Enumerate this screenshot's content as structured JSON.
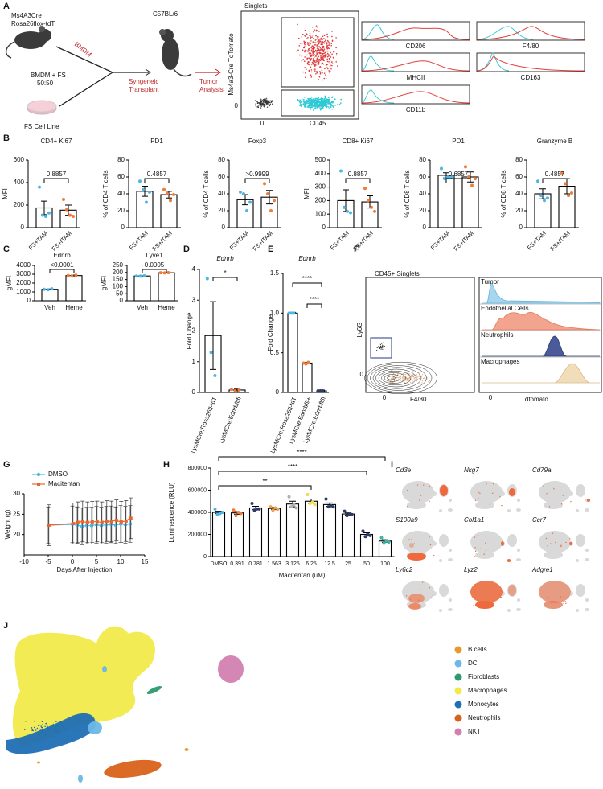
{
  "panel_labels": [
    "A",
    "B",
    "C",
    "D",
    "E",
    "F",
    "G",
    "H",
    "I",
    "J"
  ],
  "schematic": {
    "donor_line_1": "Ms4A3Cre",
    "donor_line_2": "Rosa26flox-tdT",
    "bmdm_arrow": "BMDM",
    "coculture": "BMDM + FS",
    "ratio": "50:50",
    "cell_line": "FS Cell Line",
    "recipient": "C57BL/6",
    "transplant": [
      "Syngeneic",
      "Transplant"
    ],
    "analysis": [
      "Tumor",
      "Analysis"
    ]
  },
  "flow_a": {
    "title": "Singlets",
    "y_label": "Ms4a3-Cre TdTomato",
    "x_label": "CD45",
    "x_zero": "0",
    "y_zero": "0"
  },
  "histograms_a": [
    "CD206",
    "F4/80",
    "MHCII",
    "CD163",
    "CD11b"
  ],
  "flow_f": {
    "title": "CD45+ Singlets",
    "y_label": "Ly6G",
    "x_label": "F4/80",
    "x_zero": "0",
    "y_zero": "0"
  },
  "ridges_f": {
    "rows": [
      "Tumor",
      "Endothelial Cells",
      "Neutrophils",
      "Macrophages"
    ],
    "x_label": "Tdtomato",
    "x_zero": "0"
  },
  "umap_features": [
    "Cd3e",
    "Nkg7",
    "Cd79a",
    "S100a9",
    "Col1a1",
    "Ccr7",
    "Ly6c2",
    "Lyz2",
    "Adgre1"
  ],
  "umap_clusters": [
    {
      "name": "B cells",
      "color": "#e69a2e"
    },
    {
      "name": "DC",
      "color": "#6ab8e6"
    },
    {
      "name": "Fibroblasts",
      "color": "#2c9a6a"
    },
    {
      "name": "Macrophages",
      "color": "#f2ea4a"
    },
    {
      "name": "Monocytes",
      "color": "#1f6fb5"
    },
    {
      "name": "Neutrophils",
      "color": "#d9621b"
    },
    {
      "name": "NKT",
      "color": "#d27fb0"
    }
  ],
  "chart_data": [
    {
      "type": "bar",
      "title": "CD4+ Ki67",
      "y_label": "MFI",
      "categories": [
        "FS+TAM",
        "FS+iTAM"
      ],
      "values": [
        175,
        155
      ],
      "errors": [
        60,
        45
      ],
      "points": [
        [
          360,
          110,
          100,
          130
        ],
        [
          250,
          160,
          110,
          100
        ]
      ],
      "point_colors": [
        "#4fb6e3",
        "#f07c3a"
      ],
      "ylim": [
        0,
        600
      ],
      "yticks": [
        0,
        200,
        400,
        600
      ],
      "comparisons": [
        {
          "between": [
            "FS+TAM",
            "FS+iTAM"
          ],
          "label": "0.8857"
        }
      ]
    },
    {
      "type": "bar",
      "title": "PD1",
      "y_label": "% of CD4 T cells",
      "categories": [
        "FS+TAM",
        "FS+iTAM"
      ],
      "values": [
        43,
        39
      ],
      "errors": [
        6,
        4
      ],
      "points": [
        [
          55,
          45,
          30,
          42
        ],
        [
          45,
          40,
          32,
          39
        ]
      ],
      "point_colors": [
        "#4fb6e3",
        "#f07c3a"
      ],
      "ylim": [
        0,
        80
      ],
      "yticks": [
        0,
        20,
        40,
        60,
        80
      ],
      "comparisons": [
        {
          "between": [
            "FS+TAM",
            "FS+iTAM"
          ],
          "label": "0.4857"
        }
      ]
    },
    {
      "type": "bar",
      "title": "Foxp3",
      "y_label": "% of CD4 T cells",
      "categories": [
        "FS+TAM",
        "FS+iTAM"
      ],
      "values": [
        33,
        36
      ],
      "errors": [
        6,
        8
      ],
      "points": [
        [
          42,
          40,
          20,
          30
        ],
        [
          52,
          40,
          20,
          32
        ]
      ],
      "point_colors": [
        "#4fb6e3",
        "#f07c3a"
      ],
      "ylim": [
        0,
        80
      ],
      "yticks": [
        0,
        20,
        40,
        60,
        80
      ],
      "comparisons": [
        {
          "between": [
            "FS+TAM",
            "FS+iTAM"
          ],
          "label": ">0.9999"
        }
      ]
    },
    {
      "type": "bar",
      "title": "CD8+ Ki67",
      "y_label": "MFI",
      "categories": [
        "FS+TAM",
        "FS+iTAM"
      ],
      "values": [
        200,
        190
      ],
      "errors": [
        80,
        45
      ],
      "points": [
        [
          420,
          150,
          120,
          110
        ],
        [
          290,
          200,
          150,
          120
        ]
      ],
      "point_colors": [
        "#4fb6e3",
        "#f07c3a"
      ],
      "ylim": [
        0,
        500
      ],
      "yticks": [
        0,
        100,
        200,
        300,
        400,
        500
      ],
      "comparisons": [
        {
          "between": [
            "FS+TAM",
            "FS+iTAM"
          ],
          "label": "0.8857"
        }
      ]
    },
    {
      "type": "bar",
      "title": "PD1",
      "y_label": "% of CD8 T cells",
      "categories": [
        "FS+TAM",
        "FS+iTAM"
      ],
      "values": [
        62,
        60
      ],
      "errors": [
        3,
        6
      ],
      "points": [
        [
          70,
          58,
          60,
          60
        ],
        [
          72,
          60,
          50,
          58
        ]
      ],
      "point_colors": [
        "#4fb6e3",
        "#f07c3a"
      ],
      "ylim": [
        0,
        80
      ],
      "yticks": [
        0,
        20,
        40,
        60,
        80
      ],
      "comparisons": [
        {
          "between": [
            "FS+TAM",
            "FS+iTAM"
          ],
          "label": "0.6857"
        }
      ]
    },
    {
      "type": "bar",
      "title": "Granzyme B",
      "y_label": "% of CD8 T cells",
      "categories": [
        "FS+TAM",
        "FS+iTAM"
      ],
      "values": [
        40,
        49
      ],
      "errors": [
        6,
        9
      ],
      "points": [
        [
          55,
          38,
          32,
          35
        ],
        [
          65,
          52,
          38,
          41
        ]
      ],
      "point_colors": [
        "#4fb6e3",
        "#f07c3a"
      ],
      "ylim": [
        0,
        80
      ],
      "yticks": [
        0,
        20,
        40,
        60,
        80
      ],
      "comparisons": [
        {
          "between": [
            "FS+TAM",
            "FS+iTAM"
          ],
          "label": "0.4857"
        }
      ]
    },
    {
      "type": "bar",
      "title": "Ednrb",
      "y_label": "gMFI",
      "categories": [
        "Veh",
        "Heme"
      ],
      "values": [
        1300,
        2850
      ],
      "errors": [
        40,
        60
      ],
      "points": [
        [
          1300,
          1250,
          1350
        ],
        [
          2850,
          2800,
          2900
        ]
      ],
      "point_colors": [
        "#4fb6e3",
        "#f07c3a"
      ],
      "ylim": [
        0,
        4000
      ],
      "yticks": [
        0,
        1000,
        2000,
        3000,
        4000
      ],
      "comparisons": [
        {
          "between": [
            "Veh",
            "Heme"
          ],
          "label": "<0.0001"
        }
      ]
    },
    {
      "type": "bar",
      "title": "Lyve1",
      "y_label": "gMFI",
      "categories": [
        "Veh",
        "Heme"
      ],
      "values": [
        175,
        198
      ],
      "errors": [
        1,
        1
      ],
      "points": [
        [
          175,
          174,
          176
        ],
        [
          198,
          197,
          199
        ]
      ],
      "point_colors": [
        "#4fb6e3",
        "#f07c3a"
      ],
      "ylim": [
        0,
        250
      ],
      "yticks": [
        0,
        50,
        100,
        150,
        200,
        250
      ],
      "comparisons": [
        {
          "between": [
            "Veh",
            "Heme"
          ],
          "label": "0.0005"
        }
      ]
    },
    {
      "type": "bar",
      "title": "Ednrb",
      "y_label": "Fold Change",
      "categories": [
        "LysMCre;Rosa26fl-tdT",
        "LysMCre;Ednrbfl/fl"
      ],
      "values": [
        1.85,
        0.08
      ],
      "errors": [
        1.1,
        0.03
      ],
      "points": [
        [
          3.7,
          1.3,
          0.55
        ],
        [
          0.1,
          0.05,
          0.09
        ]
      ],
      "point_colors": [
        "#4fb6e3",
        "#f07c3a"
      ],
      "ylim": [
        0,
        4
      ],
      "yticks": [
        0,
        1,
        2,
        3,
        4
      ],
      "comparisons": [
        {
          "between": [
            "LysMCre;Rosa26fl-tdT",
            "LysMCre;Ednrbfl/fl"
          ],
          "label": "*"
        }
      ]
    },
    {
      "type": "bar",
      "title": "Ednrb",
      "y_label": "Fold Change",
      "categories": [
        "LysMCre;Rosa26fl-tdT",
        "LysMCre;Ednrbfl/+",
        "LysMCre;Ednrbfl/fl"
      ],
      "values": [
        1.0,
        0.37,
        0.02
      ],
      "errors": [
        0.01,
        0.01,
        0.01
      ],
      "points": [
        [
          1.0,
          1.0,
          1.0
        ],
        [
          0.37,
          0.36,
          0.38
        ],
        [
          0.02,
          0.02,
          0.02
        ]
      ],
      "point_colors": [
        "#4fb6e3",
        "#f07c3a",
        "#2b3a67"
      ],
      "ylim": [
        0,
        1.5
      ],
      "yticks": [
        0,
        0.5,
        {
          "value": 1,
          "label": "1.0"
        },
        1.5
      ],
      "comparisons": [
        {
          "between": [
            "LysMCre;Rosa26fl-tdT",
            "LysMCre;Ednrbfl/fl"
          ],
          "label": "****"
        },
        {
          "between": [
            "LysMCre;Ednrbfl/+",
            "LysMCre;Ednrbfl/fl"
          ],
          "label": "****"
        }
      ]
    },
    {
      "type": "line",
      "y_label": "Weight (g)",
      "x_label": "Days After Injection",
      "x": [
        -5,
        0,
        1,
        2,
        3,
        4,
        5,
        6,
        7,
        8,
        9,
        10,
        11,
        12
      ],
      "series": [
        {
          "name": "DMSO",
          "color": "#4fb6e3",
          "marker": "circle",
          "values": [
            22.3,
            22.5,
            22.3,
            22.0,
            22.2,
            22.2,
            22.4,
            22.2,
            22.4,
            22.5,
            22.3,
            22.6,
            22.4,
            22.6
          ],
          "errors": [
            4.5,
            4.5,
            4.5,
            4.5,
            4.5,
            4.5,
            4.5,
            4.5,
            4.5,
            4.5,
            4.5,
            4.5,
            4.5,
            4.5
          ]
        },
        {
          "name": "Macitentan",
          "color": "#e8662e",
          "marker": "square",
          "values": [
            22.3,
            22.7,
            23.0,
            23.2,
            23.0,
            23.1,
            23.2,
            23.0,
            23.3,
            23.2,
            23.5,
            23.1,
            23.3,
            24.0
          ],
          "errors": [
            5,
            5,
            5,
            5,
            5,
            5,
            5,
            5,
            5,
            5,
            5,
            5,
            5,
            5
          ]
        }
      ],
      "xlim": [
        -10,
        15
      ],
      "xticks": [
        -10,
        -5,
        0,
        5,
        10,
        15
      ],
      "ylim": [
        15,
        30
      ],
      "yticks": [
        20,
        25,
        30
      ]
    },
    {
      "type": "bar",
      "y_label": "Luminescence (RLU)",
      "x_label": "Macitentan (uM)",
      "categories": [
        "DMSO",
        "0.391",
        "0.781",
        "1.563",
        "3.125",
        "6.25",
        "12.5",
        "25",
        "50",
        "100"
      ],
      "values": [
        400000,
        395000,
        440000,
        435000,
        475000,
        500000,
        470000,
        385000,
        200000,
        140000
      ],
      "errors": [
        10000,
        12000,
        15000,
        10000,
        25000,
        20000,
        15000,
        10000,
        15000,
        12000
      ],
      "points": [
        [
          430000,
          380000,
          390000,
          400000
        ],
        [
          420000,
          370000,
          400000,
          390000
        ],
        [
          480000,
          420000,
          430000,
          430000
        ],
        [
          450000,
          420000,
          440000,
          430000
        ],
        [
          540000,
          450000,
          470000,
          440000
        ],
        [
          560000,
          480000,
          490000,
          470000
        ],
        [
          520000,
          450000,
          460000,
          450000
        ],
        [
          410000,
          370000,
          380000,
          380000
        ],
        [
          230000,
          180000,
          200000,
          190000
        ],
        [
          170000,
          120000,
          140000,
          130000
        ]
      ],
      "point_colors": [
        "#4fb6e3",
        "#f07c3a",
        "#2b3a67",
        "#f0a04b",
        "#b0b0b0",
        "#f2d94e",
        "#2b3a67",
        "#2b3a67",
        "#2b3a67",
        "#3fb5a7"
      ],
      "ylim": [
        0,
        800000
      ],
      "yticks": [
        0,
        200000,
        400000,
        600000,
        800000
      ],
      "comparisons": [
        {
          "between": [
            "DMSO",
            "100"
          ],
          "label": "****"
        },
        {
          "between": [
            "DMSO",
            "50"
          ],
          "label": "****"
        },
        {
          "between": [
            "DMSO",
            "6.25"
          ],
          "label": "**"
        }
      ]
    }
  ]
}
